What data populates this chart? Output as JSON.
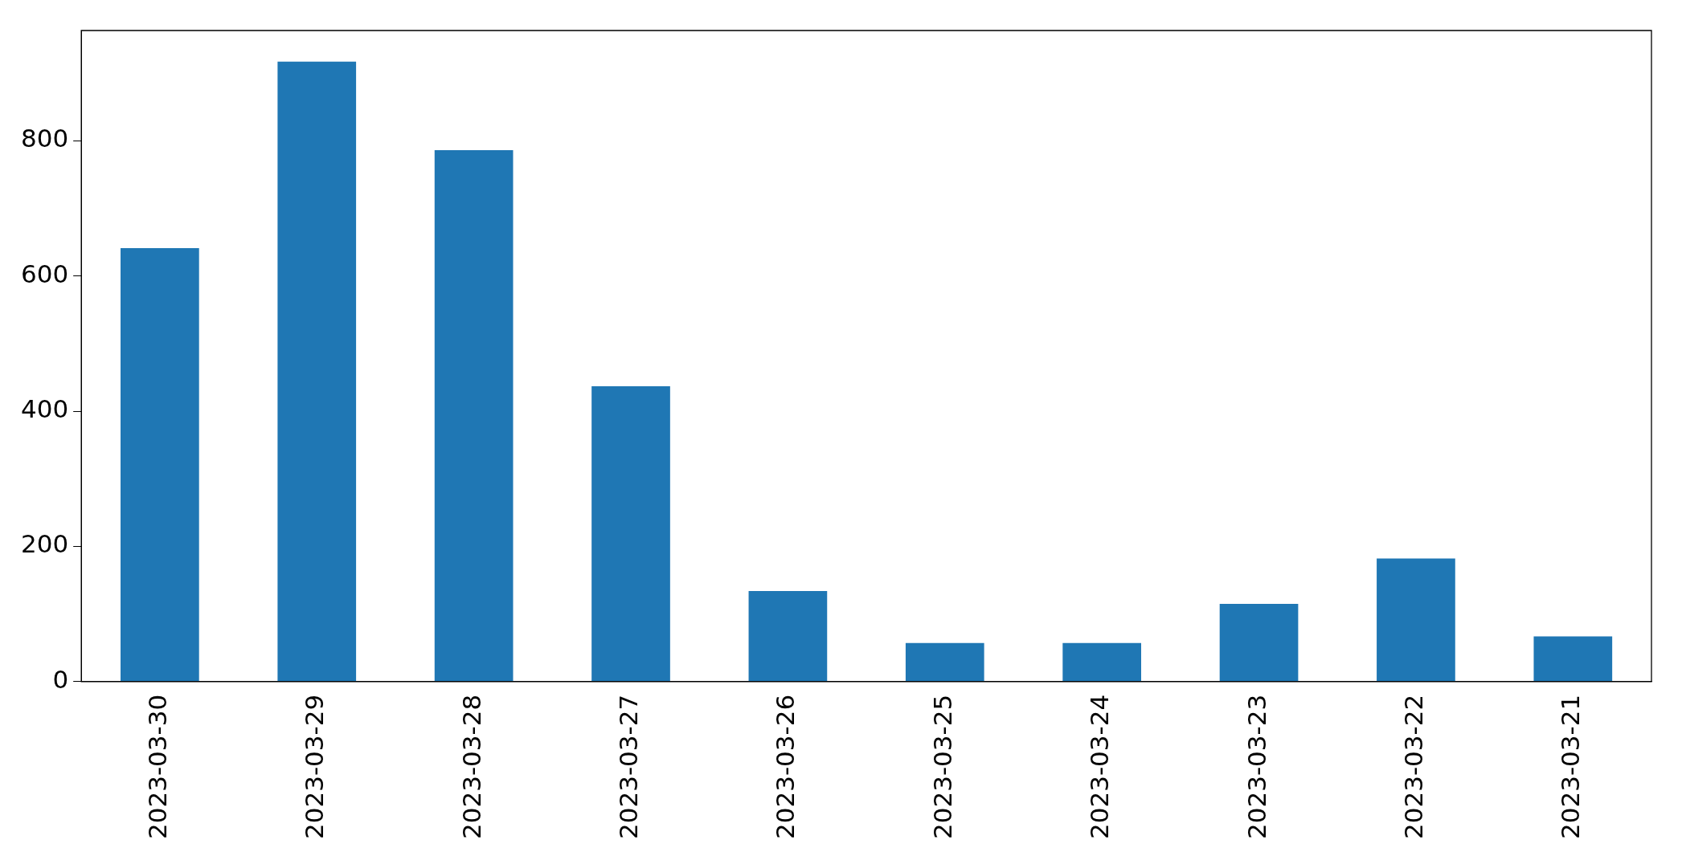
{
  "chart_data": {
    "type": "bar",
    "categories": [
      "2023-03-30",
      "2023-03-29",
      "2023-03-28",
      "2023-03-27",
      "2023-03-26",
      "2023-03-25",
      "2023-03-24",
      "2023-03-23",
      "2023-03-22",
      "2023-03-21"
    ],
    "values": [
      641,
      917,
      786,
      437,
      134,
      57,
      57,
      115,
      182,
      67
    ],
    "color": "#1f77b4",
    "ylim": [
      0,
      963
    ],
    "yticks": [
      0,
      200,
      400,
      600,
      800
    ],
    "grid": false,
    "legend": false
  }
}
